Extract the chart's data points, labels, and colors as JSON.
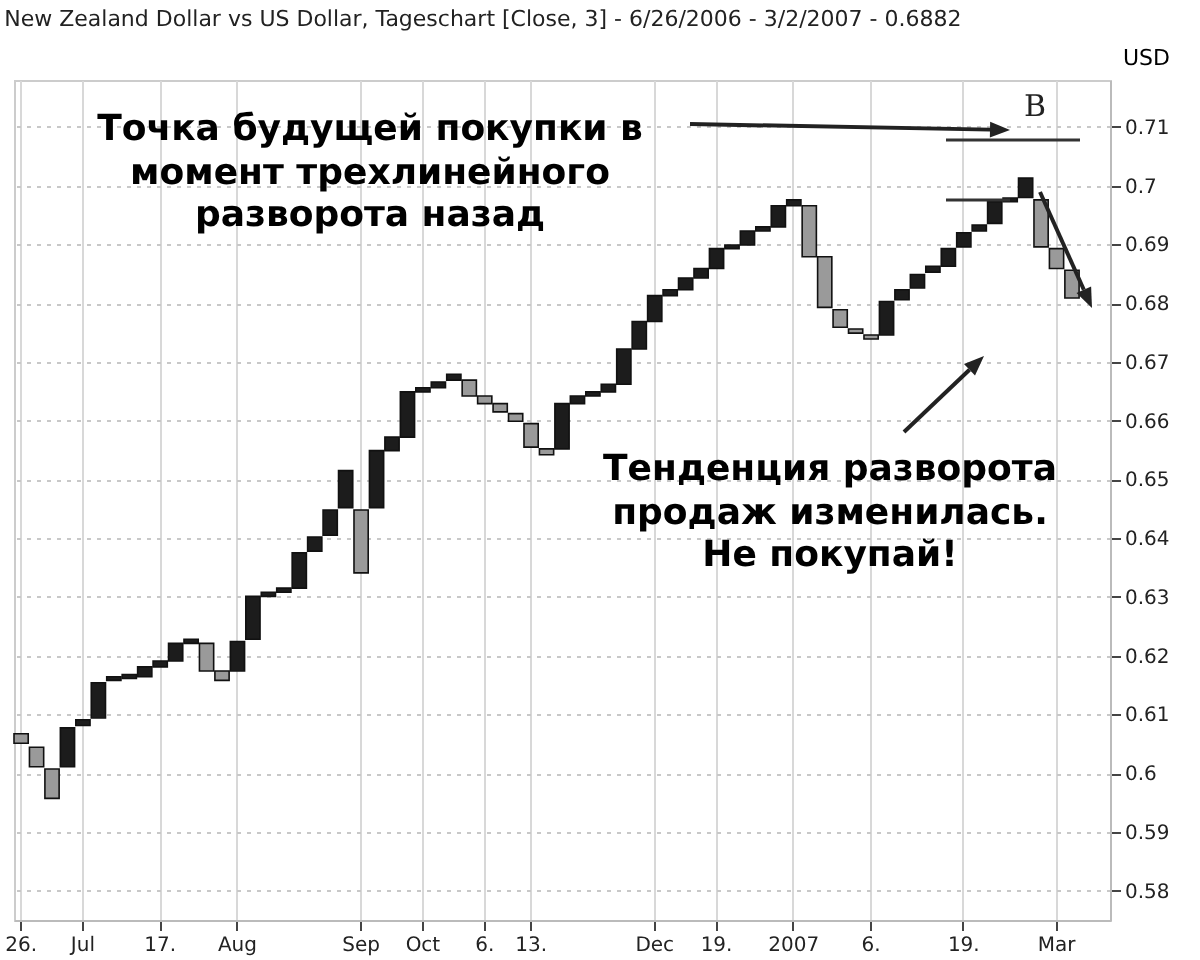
{
  "chart_data": {
    "type": "bar",
    "title": "New Zealand Dollar vs US Dollar, Tageschart [Close, 3] - 6/26/2006 - 3/2/2007 - 0.6882",
    "ylabel": "USD",
    "annotations": [
      "Точка будущей покупки в момент трехлинейного разворота назад",
      "Тенденция разворота продаж изменилась. Не покупай!",
      "B"
    ],
    "categories": [
      "26.",
      null,
      null,
      null,
      "Jul",
      null,
      null,
      null,
      null,
      "17.",
      null,
      null,
      null,
      null,
      "Aug",
      null,
      null,
      null,
      null,
      null,
      null,
      null,
      "Sep",
      null,
      null,
      null,
      "Oct",
      null,
      null,
      null,
      "6.",
      null,
      null,
      "13.",
      null,
      null,
      null,
      null,
      null,
      null,
      null,
      "Dec",
      null,
      null,
      null,
      "19.",
      null,
      null,
      null,
      null,
      "2007",
      null,
      null,
      null,
      null,
      "6.",
      null,
      null,
      null,
      null,
      null,
      "19.",
      null,
      null,
      null,
      null,
      null,
      "Mar",
      null
    ],
    "base": [
      0.6051,
      0.6011,
      0.5957,
      0.6011,
      0.6081,
      0.6094,
      0.6158,
      0.6161,
      0.6164,
      0.6181,
      0.6191,
      0.6221,
      0.6174,
      0.6158,
      0.6174,
      0.6228,
      0.6301,
      0.6308,
      0.6315,
      0.6378,
      0.6405,
      0.6452,
      0.6341,
      0.6452,
      0.6549,
      0.6572,
      0.6649,
      0.6656,
      0.6669,
      0.6642,
      0.6629,
      0.6615,
      0.6599,
      0.6555,
      0.6542,
      0.6552,
      0.6629,
      0.6642,
      0.6649,
      0.6662,
      0.6722,
      0.6769,
      0.6813,
      0.6823,
      0.6843,
      0.6859,
      0.6893,
      0.6899,
      0.6923,
      0.693,
      0.6966,
      0.6879,
      0.6793,
      0.6759,
      0.6749,
      0.6739,
      0.6746,
      0.6806,
      0.6826,
      0.6853,
      0.6863,
      0.6896,
      0.6923,
      0.6936,
      0.6973,
      0.698,
      0.6896,
      0.6859,
      0.6809
    ],
    "values": [
      0.0016,
      0.0033,
      0.005,
      0.0066,
      0.001,
      0.006,
      0.0006,
      0.0007,
      0.0017,
      0.001,
      0.003,
      0.0007,
      0.0047,
      0.0016,
      0.005,
      0.0073,
      0.0007,
      0.0007,
      0.006,
      0.0024,
      0.0043,
      0.0063,
      0.0107,
      0.0097,
      0.0023,
      0.0077,
      0.0007,
      0.001,
      0.001,
      0.0027,
      0.0013,
      0.0014,
      0.0013,
      0.004,
      0.001,
      0.0077,
      0.0013,
      0.0007,
      0.0013,
      0.006,
      0.0047,
      0.0044,
      0.001,
      0.002,
      0.0016,
      0.0034,
      0.0006,
      0.0024,
      0.0007,
      0.0036,
      0.001,
      0.0087,
      0.0086,
      0.003,
      0.0007,
      0.0007,
      0.0057,
      0.0017,
      0.0023,
      0.001,
      0.003,
      0.0024,
      0.001,
      0.0037,
      0.0006,
      0.0033,
      0.008,
      0.0034,
      0.0047
    ],
    "colors": [
      "#9a9a9a",
      "#9a9a9a",
      "#9a9a9a",
      "#1c1c1c",
      "#1c1c1c",
      "#1c1c1c",
      "#1c1c1c",
      "#1c1c1c",
      "#1c1c1c",
      "#1c1c1c",
      "#1c1c1c",
      "#1c1c1c",
      "#9a9a9a",
      "#9a9a9a",
      "#1c1c1c",
      "#1c1c1c",
      "#1c1c1c",
      "#1c1c1c",
      "#1c1c1c",
      "#1c1c1c",
      "#1c1c1c",
      "#1c1c1c",
      "#9a9a9a",
      "#1c1c1c",
      "#1c1c1c",
      "#1c1c1c",
      "#1c1c1c",
      "#1c1c1c",
      "#1c1c1c",
      "#9a9a9a",
      "#9a9a9a",
      "#9a9a9a",
      "#9a9a9a",
      "#9a9a9a",
      "#9a9a9a",
      "#1c1c1c",
      "#1c1c1c",
      "#1c1c1c",
      "#1c1c1c",
      "#1c1c1c",
      "#1c1c1c",
      "#1c1c1c",
      "#1c1c1c",
      "#1c1c1c",
      "#1c1c1c",
      "#1c1c1c",
      "#1c1c1c",
      "#1c1c1c",
      "#1c1c1c",
      "#1c1c1c",
      "#1c1c1c",
      "#9a9a9a",
      "#9a9a9a",
      "#9a9a9a",
      "#9a9a9a",
      "#9a9a9a",
      "#1c1c1c",
      "#1c1c1c",
      "#1c1c1c",
      "#1c1c1c",
      "#1c1c1c",
      "#1c1c1c",
      "#1c1c1c",
      "#1c1c1c",
      "#1c1c1c",
      "#1c1c1c",
      "#9a9a9a",
      "#9a9a9a",
      "#9a9a9a"
    ],
    "ylim": [
      0.575,
      0.718
    ],
    "yticks": [
      0.58,
      0.59,
      0.6,
      0.61,
      0.62,
      0.63,
      0.64,
      0.65,
      0.66,
      0.67,
      0.68,
      0.69,
      0.7,
      0.71
    ],
    "grid": true
  }
}
